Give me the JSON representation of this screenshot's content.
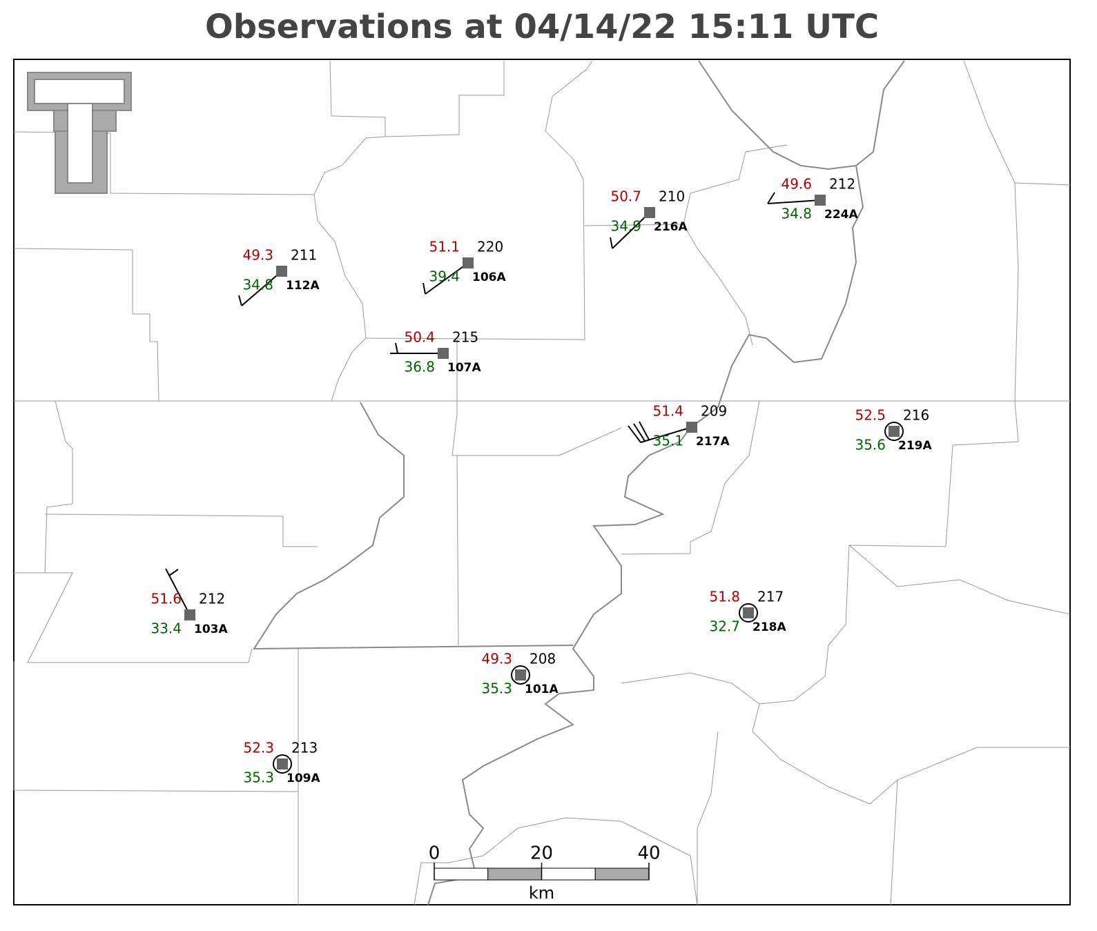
{
  "title": "Observations at 04/14/22 15:11 UTC",
  "stations": [
    {
      "id": "112A",
      "temperature": 49.3,
      "dewpoint": 34.8,
      "pressure": 211
    },
    {
      "id": "106A",
      "temperature": 51.1,
      "dewpoint": 39.4,
      "pressure": 220
    },
    {
      "id": "216A",
      "temperature": 50.7,
      "dewpoint": 34.9,
      "pressure": 210
    },
    {
      "id": "224A",
      "temperature": 49.6,
      "dewpoint": 34.8,
      "pressure": 212
    },
    {
      "id": "107A",
      "temperature": 50.4,
      "dewpoint": 36.8,
      "pressure": 215
    },
    {
      "id": "217A",
      "temperature": 51.4,
      "dewpoint": 35.1,
      "pressure": 209
    },
    {
      "id": "219A",
      "temperature": 52.5,
      "dewpoint": 35.6,
      "pressure": 216
    },
    {
      "id": "103A",
      "temperature": 51.6,
      "dewpoint": 33.4,
      "pressure": 212
    },
    {
      "id": "218A",
      "temperature": 51.8,
      "dewpoint": 32.7,
      "pressure": 217
    },
    {
      "id": "101A",
      "temperature": 49.3,
      "dewpoint": 35.3,
      "pressure": 208
    },
    {
      "id": "109A",
      "temperature": 52.3,
      "dewpoint": 35.3,
      "pressure": 213
    }
  ],
  "scale_bar": {
    "ticks": [
      0,
      20,
      40
    ],
    "unit": "km"
  }
}
